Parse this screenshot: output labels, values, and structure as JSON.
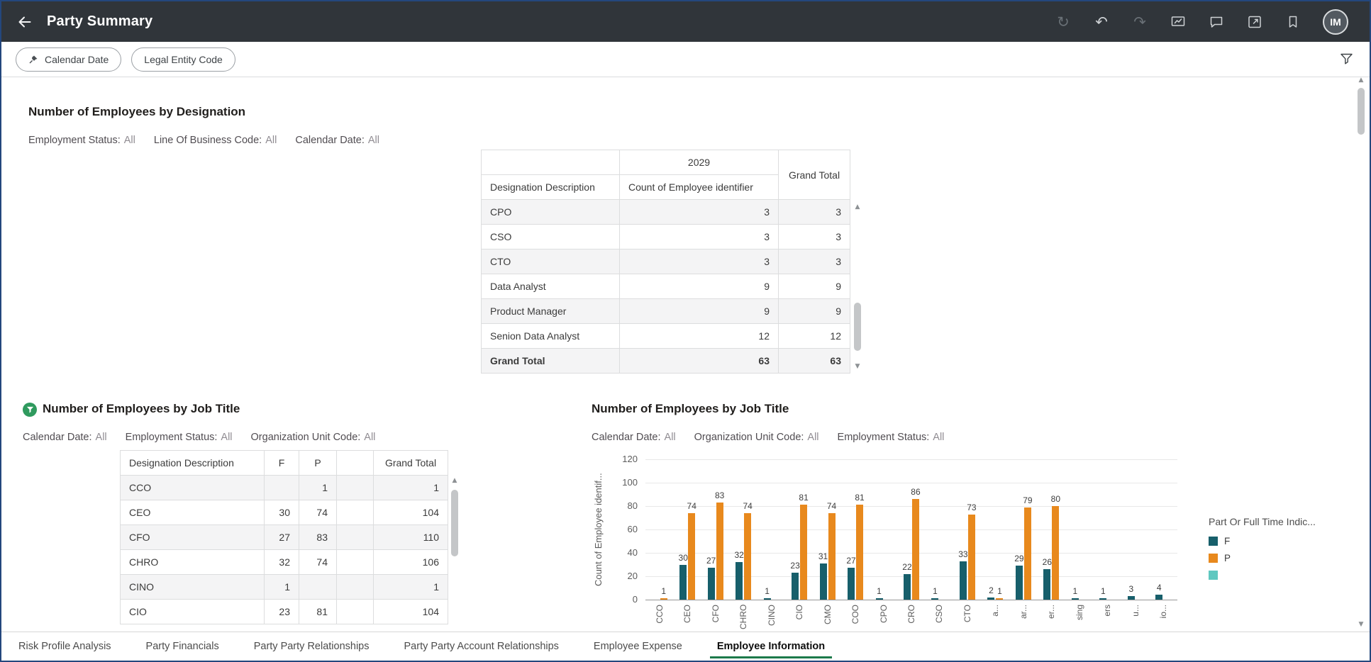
{
  "header": {
    "title": "Party Summary",
    "avatar": "IM"
  },
  "filter_bar": {
    "pills": [
      {
        "label": "Calendar Date"
      },
      {
        "label": "Legal Entity Code"
      }
    ]
  },
  "designation_section": {
    "title": "Number of Employees by Designation",
    "filters": [
      {
        "label": "Employment Status:",
        "value": "All"
      },
      {
        "label": "Line Of Business Code:",
        "value": "All"
      },
      {
        "label": "Calendar Date:",
        "value": "All"
      }
    ],
    "pivot": {
      "year_header": "2029",
      "grand_total_header": "Grand Total",
      "row_dim_header": "Designation Description",
      "measure_header": "Count of Employee identifier",
      "rows": [
        {
          "name": "CPO",
          "value": "3",
          "total": "3"
        },
        {
          "name": "CSO",
          "value": "3",
          "total": "3"
        },
        {
          "name": "CTO",
          "value": "3",
          "total": "3"
        },
        {
          "name": "Data Analyst",
          "value": "9",
          "total": "9"
        },
        {
          "name": "Product Manager",
          "value": "9",
          "total": "9"
        },
        {
          "name": "Senion Data Analyst",
          "value": "12",
          "total": "12"
        }
      ],
      "total_row": {
        "name": "Grand Total",
        "value": "63",
        "total": "63"
      }
    }
  },
  "job_table_section": {
    "title": "Number of Employees by Job Title",
    "filters": [
      {
        "label": "Calendar Date:",
        "value": "All"
      },
      {
        "label": "Employment Status:",
        "value": "All"
      },
      {
        "label": "Organization Unit Code:",
        "value": "All"
      }
    ],
    "table": {
      "headers": [
        "Designation Description",
        "F",
        "P",
        "",
        "Grand Total"
      ],
      "rows": [
        [
          "CCO",
          "",
          "1",
          "",
          "1"
        ],
        [
          "CEO",
          "30",
          "74",
          "",
          "104"
        ],
        [
          "CFO",
          "27",
          "83",
          "",
          "110"
        ],
        [
          "CHRO",
          "32",
          "74",
          "",
          "106"
        ],
        [
          "CINO",
          "1",
          "",
          "",
          "1"
        ],
        [
          "CIO",
          "23",
          "81",
          "",
          "104"
        ]
      ]
    }
  },
  "job_chart_section": {
    "title": "Number of Employees by Job Title",
    "filters": [
      {
        "label": "Calendar Date:",
        "value": "All"
      },
      {
        "label": "Organization Unit Code:",
        "value": "All"
      },
      {
        "label": "Employment Status:",
        "value": "All"
      }
    ],
    "chart_data": {
      "type": "bar",
      "title": "Number of Employees by Job Title",
      "xlabel": "",
      "ylabel": "Count of Employee identif...",
      "ylim": [
        0,
        120
      ],
      "yticks": [
        0,
        20,
        40,
        60,
        80,
        100,
        120
      ],
      "grid": true,
      "legend_position": "right",
      "categories": [
        "CCO",
        "CEO",
        "CFO",
        "CHRO",
        "CINO",
        "CIO",
        "CMO",
        "COO",
        "CPO",
        "CRO",
        "CSO",
        "CTO",
        "a...",
        "ar...",
        "er...",
        "sing",
        "ers",
        "u...",
        "io..."
      ],
      "series": [
        {
          "name": "F",
          "color": "#175f6b",
          "values": [
            null,
            30,
            27,
            32,
            1,
            23,
            31,
            27,
            1,
            22,
            1,
            33,
            2,
            29,
            26,
            1,
            1,
            3,
            4
          ]
        },
        {
          "name": "P",
          "color": "#e8891d",
          "values": [
            1,
            74,
            83,
            74,
            null,
            81,
            74,
            81,
            null,
            86,
            null,
            73,
            1,
            79,
            80,
            null,
            null,
            null,
            null
          ]
        }
      ]
    },
    "legend": {
      "title": "Part Or Full Time Indic...",
      "items": [
        {
          "label": "F",
          "color": "#175f6b"
        },
        {
          "label": "P",
          "color": "#e8891d"
        },
        {
          "label": "",
          "color": "#5fc8c0"
        }
      ]
    }
  },
  "tabs": [
    {
      "label": "Risk Profile Analysis",
      "active": false
    },
    {
      "label": "Party Financials",
      "active": false
    },
    {
      "label": "Party Party Relationships",
      "active": false
    },
    {
      "label": "Party Party Account Relationships",
      "active": false
    },
    {
      "label": "Employee Expense",
      "active": false
    },
    {
      "label": "Employee Information",
      "active": true
    }
  ]
}
